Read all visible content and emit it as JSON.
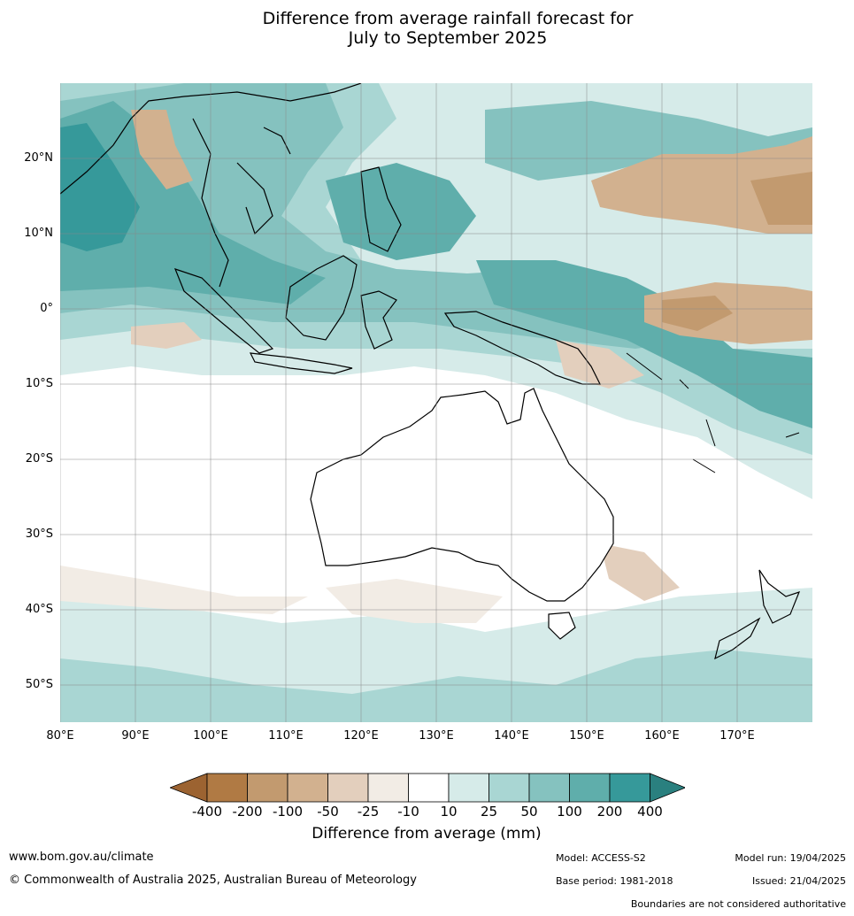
{
  "title_line1": "Difference from average rainfall forecast for",
  "title_line2": "July to September 2025",
  "lat_labels": [
    "20°N",
    "10°N",
    "0°",
    "10°S",
    "20°S",
    "30°S",
    "40°S",
    "50°S"
  ],
  "lon_labels": [
    "80°E",
    "90°E",
    "100°E",
    "110°E",
    "120°E",
    "130°E",
    "140°E",
    "150°E",
    "160°E",
    "170°E"
  ],
  "colorbar": {
    "ticks": [
      "-400",
      "-200",
      "-100",
      "-50",
      "-25",
      "-10",
      "10",
      "25",
      "50",
      "100",
      "200",
      "400"
    ],
    "colors": [
      "#9c6331",
      "#b07a44",
      "#c29a6f",
      "#d2b18f",
      "#e3cfbd",
      "#f2ece5",
      "#ffffff",
      "#d6ebe9",
      "#a9d6d3",
      "#85c2bf",
      "#5faeab",
      "#36999a",
      "#2a807f"
    ],
    "title": "Difference from average (mm)"
  },
  "footer": {
    "website": "www.bom.gov.au/climate",
    "copyright": "© Commonwealth of Australia 2025, Australian Bureau of Meteorology",
    "model": "Model: ACCESS-S2",
    "base_period": "Base period: 1981-2018",
    "model_run": "Model run: 19/04/2025",
    "issued": "Issued: 21/04/2025",
    "disclaimer": "Boundaries are not considered authoritative"
  }
}
